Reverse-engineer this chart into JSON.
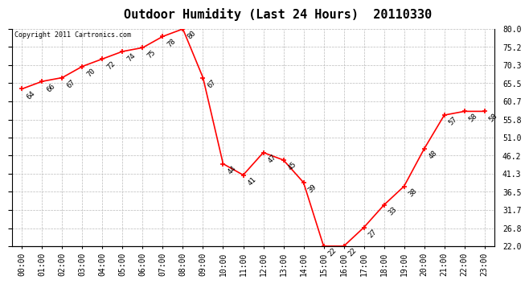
{
  "title": "Outdoor Humidity (Last 24 Hours)  20110330",
  "copyright_text": "Copyright 2011 Cartronics.com",
  "x_labels": [
    "00:00",
    "01:00",
    "02:00",
    "03:00",
    "04:00",
    "05:00",
    "06:00",
    "07:00",
    "08:00",
    "09:00",
    "10:00",
    "11:00",
    "12:00",
    "13:00",
    "14:00",
    "15:00",
    "16:00",
    "17:00",
    "18:00",
    "19:00",
    "20:00",
    "21:00",
    "22:00",
    "23:00"
  ],
  "y_values": [
    64,
    66,
    67,
    70,
    72,
    74,
    75,
    78,
    80,
    67,
    44,
    41,
    47,
    45,
    39,
    22,
    22,
    27,
    33,
    38,
    48,
    57,
    58,
    58
  ],
  "y_ticks": [
    22.0,
    26.8,
    31.7,
    36.5,
    41.3,
    46.2,
    51.0,
    55.8,
    60.7,
    65.5,
    70.3,
    75.2,
    80.0
  ],
  "ylim_min": 22.0,
  "ylim_max": 80.0,
  "line_color": "red",
  "marker_color": "red",
  "bg_color": "white",
  "grid_color": "#bbbbbb",
  "title_fontsize": 11,
  "tick_fontsize": 7,
  "annot_fontsize": 6.5,
  "copyright_fontsize": 6
}
